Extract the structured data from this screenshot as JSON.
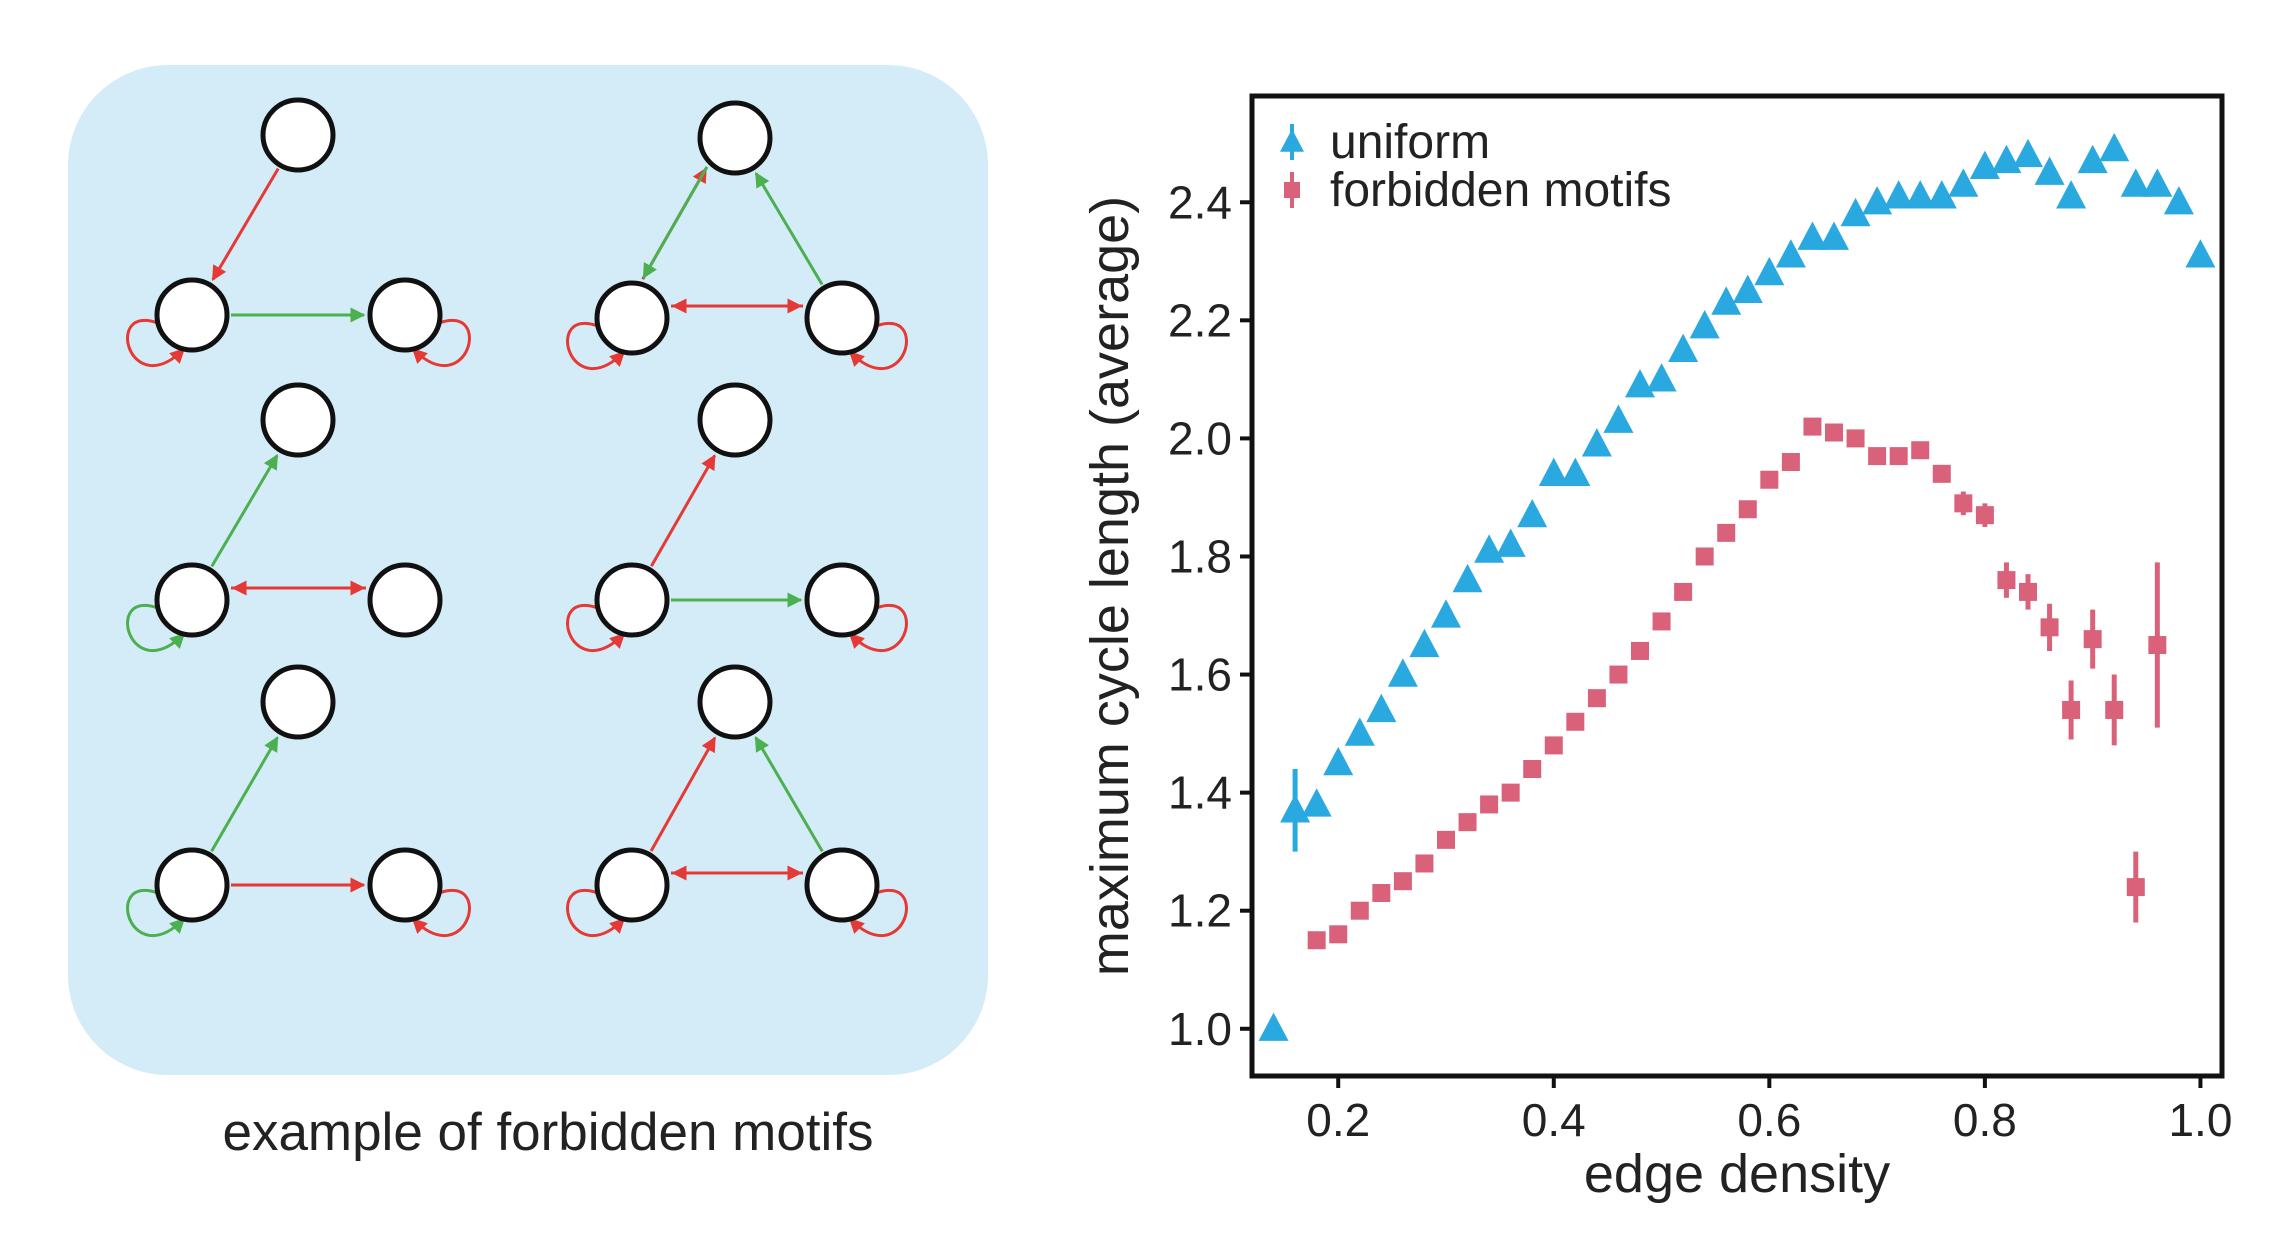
{
  "motifs_panel": {
    "caption": "example of forbidden motifs",
    "colors": {
      "panel_bg": "#d4ecf7",
      "excitatory": "#4caf50",
      "inhibitory": "#e53935",
      "node_fill": "#ffffff",
      "node_stroke": "#111111"
    }
  },
  "chart_data": {
    "type": "scatter",
    "title": "",
    "xlabel": "edge density",
    "ylabel": "maximum cycle length (average)",
    "xlim": [
      0.12,
      1.02
    ],
    "ylim": [
      0.92,
      2.58
    ],
    "x_ticks": [
      0.2,
      0.4,
      0.6,
      0.8,
      1.0
    ],
    "x_tick_labels": [
      "0.2",
      "0.4",
      "0.6",
      "0.8",
      "1.0"
    ],
    "y_ticks": [
      1.0,
      1.2,
      1.4,
      1.6,
      1.8,
      2.0,
      2.2,
      2.4
    ],
    "y_tick_labels": [
      "1.0",
      "1.2",
      "1.4",
      "1.6",
      "1.8",
      "2.0",
      "2.2",
      "2.4"
    ],
    "grid": false,
    "legend_position": "top-left",
    "series": [
      {
        "name": "uniform",
        "marker": "triangle",
        "color": "#29a9e0",
        "points": [
          [
            0.14,
            1.0,
            0
          ],
          [
            0.16,
            1.37,
            0.07
          ],
          [
            0.18,
            1.38,
            0
          ],
          [
            0.2,
            1.45,
            0
          ],
          [
            0.22,
            1.5,
            0
          ],
          [
            0.24,
            1.54,
            0
          ],
          [
            0.26,
            1.6,
            0
          ],
          [
            0.28,
            1.65,
            0
          ],
          [
            0.3,
            1.7,
            0
          ],
          [
            0.32,
            1.76,
            0
          ],
          [
            0.34,
            1.81,
            0
          ],
          [
            0.36,
            1.82,
            0
          ],
          [
            0.38,
            1.87,
            0
          ],
          [
            0.4,
            1.94,
            0
          ],
          [
            0.42,
            1.94,
            0
          ],
          [
            0.44,
            1.99,
            0
          ],
          [
            0.46,
            2.03,
            0
          ],
          [
            0.48,
            2.09,
            0
          ],
          [
            0.5,
            2.1,
            0
          ],
          [
            0.52,
            2.15,
            0
          ],
          [
            0.54,
            2.19,
            0
          ],
          [
            0.56,
            2.23,
            0
          ],
          [
            0.58,
            2.25,
            0
          ],
          [
            0.6,
            2.28,
            0
          ],
          [
            0.62,
            2.31,
            0
          ],
          [
            0.64,
            2.34,
            0
          ],
          [
            0.66,
            2.34,
            0
          ],
          [
            0.68,
            2.38,
            0
          ],
          [
            0.7,
            2.4,
            0
          ],
          [
            0.72,
            2.41,
            0
          ],
          [
            0.74,
            2.41,
            0
          ],
          [
            0.76,
            2.41,
            0
          ],
          [
            0.78,
            2.43,
            0
          ],
          [
            0.8,
            2.46,
            0
          ],
          [
            0.82,
            2.47,
            0
          ],
          [
            0.84,
            2.48,
            0
          ],
          [
            0.86,
            2.45,
            0
          ],
          [
            0.88,
            2.41,
            0
          ],
          [
            0.9,
            2.47,
            0
          ],
          [
            0.92,
            2.49,
            0
          ],
          [
            0.94,
            2.43,
            0
          ],
          [
            0.96,
            2.43,
            0
          ],
          [
            0.98,
            2.4,
            0
          ],
          [
            1.0,
            2.31,
            0
          ]
        ]
      },
      {
        "name": "forbidden motifs",
        "marker": "square",
        "color": "#d9627a",
        "points": [
          [
            0.18,
            1.15,
            0
          ],
          [
            0.2,
            1.16,
            0
          ],
          [
            0.22,
            1.2,
            0
          ],
          [
            0.24,
            1.23,
            0
          ],
          [
            0.26,
            1.25,
            0
          ],
          [
            0.28,
            1.28,
            0
          ],
          [
            0.3,
            1.32,
            0
          ],
          [
            0.32,
            1.35,
            0
          ],
          [
            0.34,
            1.38,
            0
          ],
          [
            0.36,
            1.4,
            0
          ],
          [
            0.38,
            1.44,
            0
          ],
          [
            0.4,
            1.48,
            0
          ],
          [
            0.42,
            1.52,
            0
          ],
          [
            0.44,
            1.56,
            0
          ],
          [
            0.46,
            1.6,
            0
          ],
          [
            0.48,
            1.64,
            0
          ],
          [
            0.5,
            1.69,
            0
          ],
          [
            0.52,
            1.74,
            0
          ],
          [
            0.54,
            1.8,
            0
          ],
          [
            0.56,
            1.84,
            0
          ],
          [
            0.58,
            1.88,
            0
          ],
          [
            0.6,
            1.93,
            0
          ],
          [
            0.62,
            1.96,
            0
          ],
          [
            0.64,
            2.02,
            0
          ],
          [
            0.66,
            2.01,
            0
          ],
          [
            0.68,
            2.0,
            0
          ],
          [
            0.7,
            1.97,
            0
          ],
          [
            0.72,
            1.97,
            0
          ],
          [
            0.74,
            1.98,
            0
          ],
          [
            0.76,
            1.94,
            0
          ],
          [
            0.78,
            1.89,
            0.02
          ],
          [
            0.8,
            1.87,
            0.02
          ],
          [
            0.82,
            1.76,
            0.03
          ],
          [
            0.84,
            1.74,
            0.03
          ],
          [
            0.86,
            1.68,
            0.04
          ],
          [
            0.88,
            1.54,
            0.05
          ],
          [
            0.9,
            1.66,
            0.05
          ],
          [
            0.92,
            1.54,
            0.06
          ],
          [
            0.94,
            1.24,
            0.06
          ],
          [
            0.96,
            1.65,
            0.14
          ]
        ]
      }
    ]
  }
}
